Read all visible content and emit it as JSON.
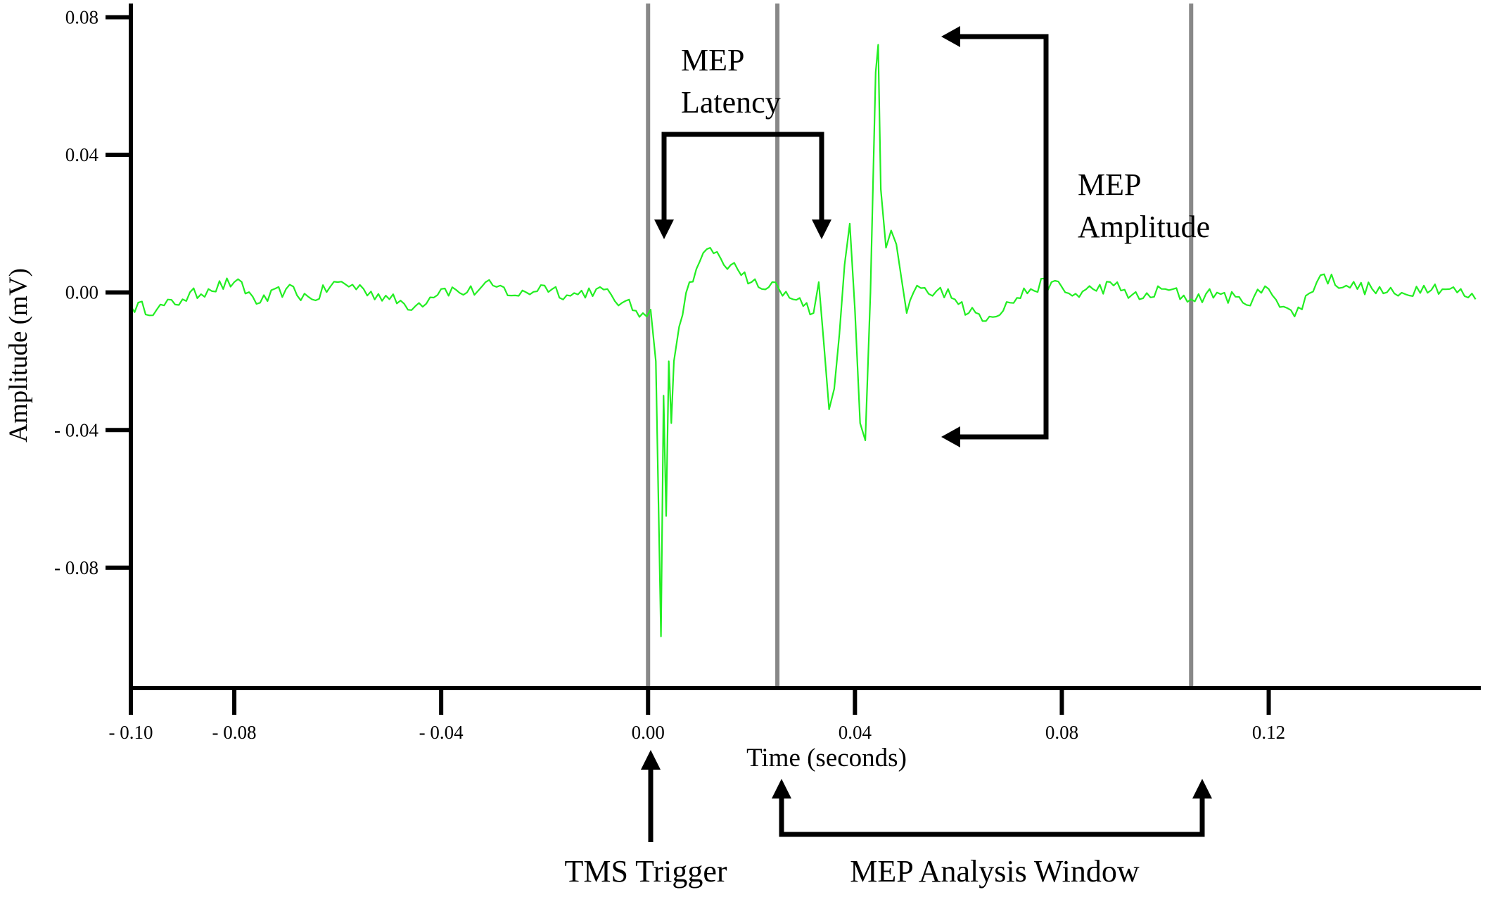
{
  "chart_data": {
    "type": "line",
    "title": "",
    "xlabel": "Time (seconds)",
    "ylabel": "Amplitude (mV)",
    "xlim": [
      -0.1,
      0.161
    ],
    "ylim": [
      -0.115,
      0.085
    ],
    "x_ticks": [
      {
        "value": -0.1,
        "label": "- 0.10"
      },
      {
        "value": -0.08,
        "label": "- 0.08"
      },
      {
        "value": -0.04,
        "label": "- 0.04"
      },
      {
        "value": 0.0,
        "label": "0.00"
      },
      {
        "value": 0.04,
        "label": "0.04"
      },
      {
        "value": 0.08,
        "label": "0.08"
      },
      {
        "value": 0.12,
        "label": "0.12"
      }
    ],
    "y_ticks": [
      {
        "value": 0.08,
        "label": "0.08"
      },
      {
        "value": 0.04,
        "label": "0.04"
      },
      {
        "value": 0.0,
        "label": "0.00"
      },
      {
        "value": -0.04,
        "label": "- 0.04"
      },
      {
        "value": -0.08,
        "label": "- 0.08"
      }
    ],
    "grid": false,
    "series": [
      {
        "color": "#22ee22",
        "x": [
          -0.1,
          -0.095,
          -0.09,
          -0.085,
          -0.08,
          -0.075,
          -0.07,
          -0.065,
          -0.06,
          -0.055,
          -0.05,
          -0.045,
          -0.04,
          -0.035,
          -0.03,
          -0.025,
          -0.02,
          -0.015,
          -0.01,
          -0.005,
          -0.001,
          0.0005,
          0.0015,
          0.0025,
          0.003,
          0.0035,
          0.004,
          0.0045,
          0.005,
          0.006,
          0.008,
          0.01,
          0.012,
          0.014,
          0.016,
          0.018,
          0.02,
          0.022,
          0.024,
          0.026,
          0.028,
          0.03,
          0.032,
          0.033,
          0.034,
          0.035,
          0.036,
          0.037,
          0.038,
          0.039,
          0.04,
          0.041,
          0.042,
          0.043,
          0.044,
          0.0445,
          0.045,
          0.046,
          0.047,
          0.048,
          0.049,
          0.05,
          0.052,
          0.055,
          0.058,
          0.062,
          0.066,
          0.07,
          0.074,
          0.078,
          0.082,
          0.086,
          0.09,
          0.095,
          0.1,
          0.105,
          0.11,
          0.115,
          0.12,
          0.125,
          0.13,
          0.135,
          0.14,
          0.145,
          0.15,
          0.155,
          0.16
        ],
        "y": [
          -0.004,
          -0.005,
          -0.002,
          0.001,
          0.003,
          -0.003,
          0.001,
          -0.002,
          0.003,
          0.001,
          -0.002,
          -0.004,
          0.001,
          0.0,
          0.002,
          -0.001,
          0.002,
          -0.001,
          0.001,
          -0.003,
          -0.006,
          -0.005,
          -0.02,
          -0.1,
          -0.03,
          -0.065,
          -0.02,
          -0.038,
          -0.02,
          -0.01,
          0.003,
          0.009,
          0.013,
          0.01,
          0.008,
          0.005,
          0.003,
          0.001,
          0.003,
          -0.001,
          -0.002,
          -0.004,
          -0.006,
          0.003,
          -0.015,
          -0.034,
          -0.028,
          -0.012,
          0.008,
          0.02,
          -0.005,
          -0.038,
          -0.043,
          0.0,
          0.064,
          0.072,
          0.03,
          0.013,
          0.018,
          0.014,
          0.004,
          -0.006,
          0.002,
          -0.001,
          0.001,
          -0.006,
          -0.007,
          -0.003,
          0.001,
          0.003,
          -0.001,
          0.001,
          0.002,
          -0.002,
          0.001,
          -0.002,
          0.0,
          -0.003,
          0.001,
          -0.007,
          0.005,
          0.002,
          0.001,
          -0.001,
          0.002,
          0.001,
          -0.002
        ]
      }
    ],
    "vertical_lines": [
      {
        "x": 0.0,
        "color": "#888888"
      },
      {
        "x": 0.025,
        "color": "#888888"
      },
      {
        "x": 0.105,
        "color": "#888888"
      }
    ]
  },
  "annotations": {
    "latency_line1": "MEP",
    "latency_line2": "Latency",
    "amplitude_line1": "MEP",
    "amplitude_line2": "Amplitude",
    "tms_trigger": "TMS Trigger",
    "analysis_window": "MEP Analysis Window"
  }
}
